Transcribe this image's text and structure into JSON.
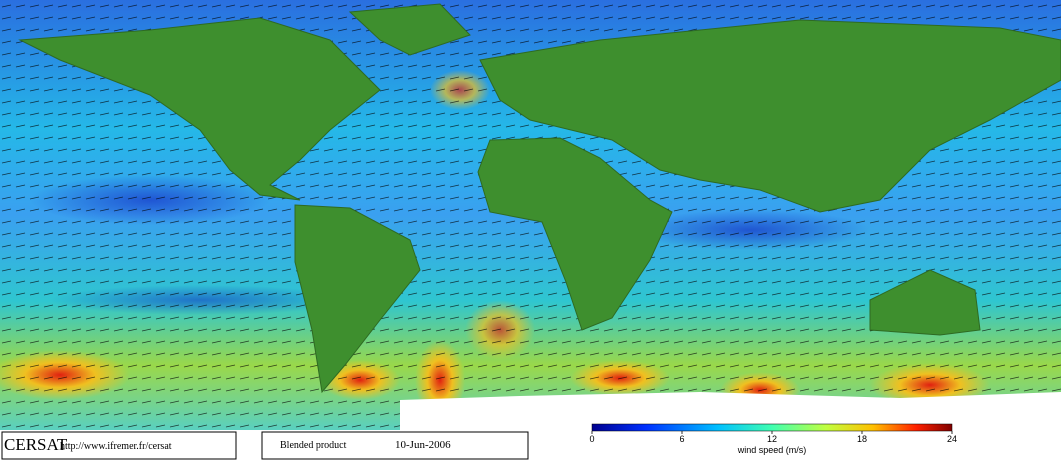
{
  "footer": {
    "logo": "CERSAT",
    "url": "http://www.ifremer.fr/cersat",
    "product": "Blended product",
    "date": "10-Jun-2006"
  },
  "colorbar": {
    "label": "wind speed (m/s)",
    "range": [
      0,
      24
    ],
    "ticks": [
      0,
      6,
      12,
      18,
      24
    ]
  }
}
